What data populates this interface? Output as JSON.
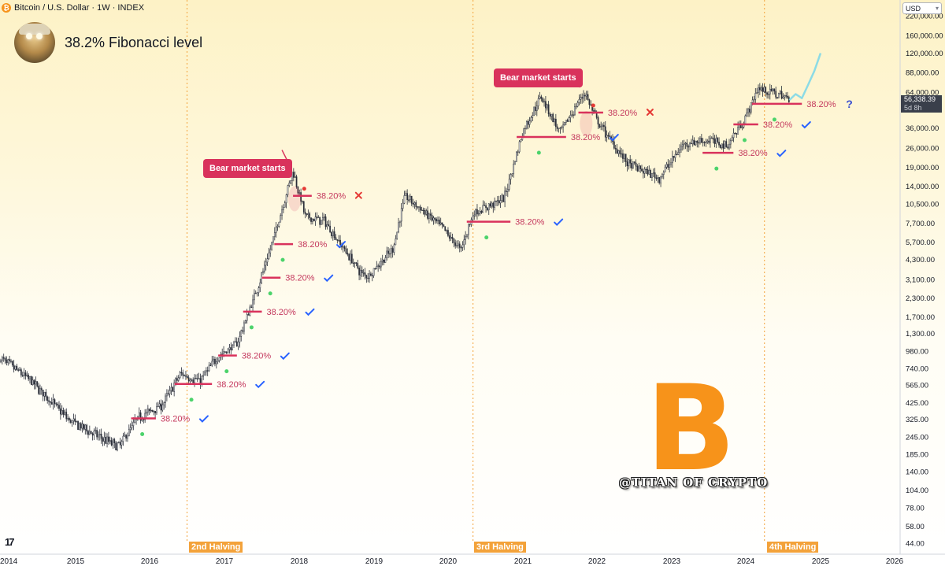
{
  "symbol_title": "Bitcoin / U.S. Dollar · 1W · INDEX",
  "btc_glyph": "₿",
  "headline": "38.2% Fibonacci level",
  "currency_selector": "USD",
  "current_price": "56,338.39",
  "countdown": "5d 8h",
  "tradingview_logo": "17",
  "watermark_symbol": "B",
  "credit": "@TITAN OF CRYPTO",
  "colors": {
    "fib_line": "#d9325c",
    "check": "#2962ff",
    "cross": "#e53935",
    "green_dot": "#4cd36b",
    "halving": "#f3a23a",
    "projection": "#7fd8e8"
  },
  "chart_data": {
    "type": "candlestick",
    "title": "38.2% Fibonacci level",
    "scale": "log",
    "y_axis_labels": [
      "220,000.00",
      "160,000.00",
      "120,000.00",
      "88,000.00",
      "64,000.00",
      "36,000.00",
      "26,000.00",
      "19,000.00",
      "14,000.00",
      "10,500.00",
      "7,700.00",
      "5,700.00",
      "4,300.00",
      "3,100.00",
      "2,300.00",
      "1,700.00",
      "1,300.00",
      "980.00",
      "740.00",
      "565.00",
      "425.00",
      "325.00",
      "245.00",
      "185.00",
      "140.00",
      "104.00",
      "78.00",
      "58.00",
      "44.00"
    ],
    "x_axis_labels": [
      "2014",
      "2015",
      "2016",
      "2017",
      "2018",
      "2019",
      "2020",
      "2021",
      "2022",
      "2023",
      "2024",
      "2025",
      "2026"
    ],
    "price_path": [
      [
        "2014-01",
        880
      ],
      [
        "2014-06",
        600
      ],
      [
        "2014-12",
        320
      ],
      [
        "2015-06",
        230
      ],
      [
        "2015-08",
        210
      ],
      [
        "2015-11",
        330
      ],
      [
        "2016-03",
        410
      ],
      [
        "2016-06",
        680
      ],
      [
        "2016-09",
        600
      ],
      [
        "2016-12",
        900
      ],
      [
        "2017-03",
        1100
      ],
      [
        "2017-06",
        2500
      ],
      [
        "2017-08",
        4500
      ],
      [
        "2017-12",
        18000
      ],
      [
        "2018-02",
        8500
      ],
      [
        "2018-05",
        8000
      ],
      [
        "2018-11",
        3400
      ],
      [
        "2018-12",
        3300
      ],
      [
        "2019-04",
        5000
      ],
      [
        "2019-06",
        12000
      ],
      [
        "2019-12",
        7200
      ],
      [
        "2020-03",
        5000
      ],
      [
        "2020-05",
        9000
      ],
      [
        "2020-10",
        11500
      ],
      [
        "2021-01",
        34000
      ],
      [
        "2021-04",
        60000
      ],
      [
        "2021-07",
        33000
      ],
      [
        "2021-11",
        64000
      ],
      [
        "2022-01",
        40000
      ],
      [
        "2022-06",
        20000
      ],
      [
        "2022-11",
        16000
      ],
      [
        "2023-03",
        28000
      ],
      [
        "2023-07",
        29500
      ],
      [
        "2023-10",
        27000
      ],
      [
        "2024-01",
        43000
      ],
      [
        "2024-03",
        68000
      ],
      [
        "2024-07",
        60000
      ],
      [
        "2024-08",
        56338
      ]
    ],
    "projection": [
      [
        "2024-08",
        56338
      ],
      [
        "2024-09",
        62000
      ],
      [
        "2024-10",
        58000
      ],
      [
        "2024-11",
        72000
      ],
      [
        "2024-12",
        90000
      ],
      [
        "2025-01",
        120000
      ]
    ],
    "halvings": [
      {
        "date": "2016-07",
        "label": "2nd Halving"
      },
      {
        "date": "2020-05",
        "label": "3rd Halving"
      },
      {
        "date": "2024-04",
        "label": "4th Halving"
      }
    ],
    "fib_levels": [
      {
        "start": "2015-10",
        "end": "2016-02",
        "price": 330,
        "label": "38.20%",
        "status": "check"
      },
      {
        "start": "2016-05",
        "end": "2016-11",
        "price": 575,
        "label": "38.20%",
        "status": "check"
      },
      {
        "start": "2016-12",
        "end": "2017-03",
        "price": 910,
        "label": "38.20%",
        "status": "check"
      },
      {
        "start": "2017-04",
        "end": "2017-07",
        "price": 1850,
        "label": "38.20%",
        "status": "check"
      },
      {
        "start": "2017-07",
        "end": "2017-10",
        "price": 3200,
        "label": "38.20%",
        "status": "check"
      },
      {
        "start": "2017-09",
        "end": "2017-12",
        "price": 5500,
        "label": "38.20%",
        "status": "check"
      },
      {
        "start": "2017-12",
        "end": "2018-03",
        "price": 12000,
        "label": "38.20%",
        "status": "cross"
      },
      {
        "start": "2020-04",
        "end": "2020-11",
        "price": 7900,
        "label": "38.20%",
        "status": "check"
      },
      {
        "start": "2020-12",
        "end": "2021-08",
        "price": 31000,
        "label": "38.20%",
        "status": "check"
      },
      {
        "start": "2021-10",
        "end": "2022-02",
        "price": 46000,
        "label": "38.20%",
        "status": "cross"
      },
      {
        "start": "2023-06",
        "end": "2023-11",
        "price": 24000,
        "label": "38.20%",
        "status": "check"
      },
      {
        "start": "2023-11",
        "end": "2024-03",
        "price": 38000,
        "label": "38.20%",
        "status": "check"
      },
      {
        "start": "2024-02",
        "end": "2024-10",
        "price": 53000,
        "label": "38.20%",
        "status": "question"
      }
    ],
    "annotations": [
      {
        "text": "Bear market starts",
        "date": "2017-12",
        "price": 19000
      },
      {
        "text": "Bear market starts",
        "date": "2021-11",
        "price": 64000
      }
    ],
    "legend": "none",
    "grid": false
  }
}
